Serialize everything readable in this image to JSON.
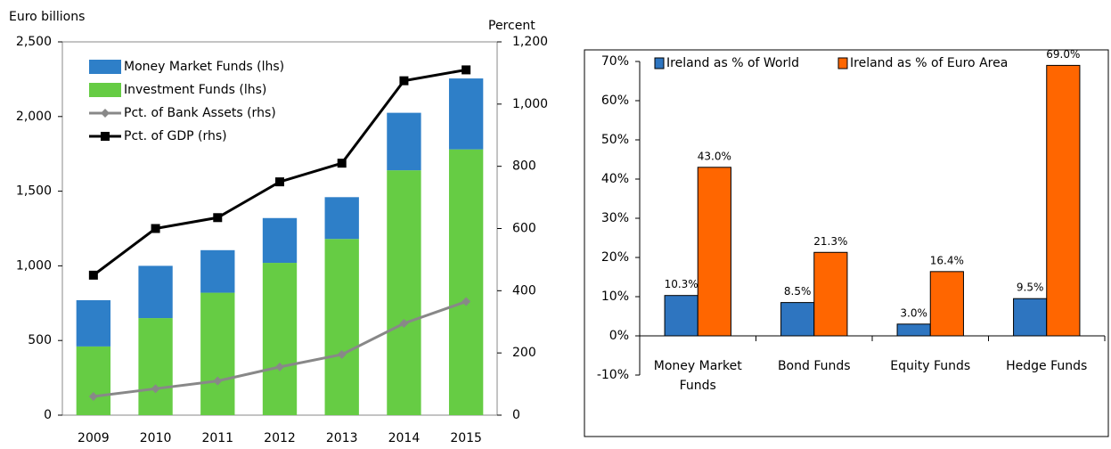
{
  "chart_data": [
    {
      "type": "bar",
      "stacked": true,
      "ylabel": "Euro billions",
      "y2label": "Percent",
      "categories": [
        "2009",
        "2010",
        "2011",
        "2012",
        "2013",
        "2014",
        "2015"
      ],
      "ylim": [
        0,
        2500
      ],
      "yticks": [
        0,
        500,
        {
          "value": 1000,
          "label": "1,000"
        },
        {
          "value": 1500,
          "label": "1,500"
        },
        {
          "value": 2000,
          "label": "2,000"
        },
        {
          "value": 2500,
          "label": "2,500"
        }
      ],
      "y2lim": [
        0,
        1200
      ],
      "y2ticks": [
        0,
        200,
        400,
        600,
        800,
        {
          "value": 1000,
          "label": "1,000"
        },
        {
          "value": 1200,
          "label": "1,200"
        }
      ],
      "series": [
        {
          "name": "Money Market Funds (lhs)",
          "color": "#2e7fc8",
          "values": [
            310,
            350,
            285,
            300,
            280,
            385,
            475
          ]
        },
        {
          "name": "Investment Funds (lhs)",
          "color": "#66cc44",
          "values": [
            460,
            650,
            820,
            1020,
            1180,
            1640,
            1780
          ]
        },
        {
          "name": "Pct. of Bank Assets (rhs)",
          "color": "#888888",
          "type": "line",
          "marker": "diamond",
          "axis": "y2",
          "values": [
            60,
            85,
            110,
            155,
            195,
            295,
            365
          ]
        },
        {
          "name": "Pct. of GDP (rhs)",
          "color": "#000000",
          "type": "line",
          "marker": "square",
          "axis": "y2",
          "values": [
            450,
            600,
            635,
            750,
            810,
            1075,
            1110
          ]
        }
      ]
    },
    {
      "type": "bar",
      "stacked": false,
      "categories": [
        "Money Market Funds",
        "Bond Funds",
        "Equity Funds",
        "Hedge Funds"
      ],
      "ylim": [
        -10,
        70
      ],
      "yticks": [
        {
          "value": -10,
          "label": "-10%"
        },
        {
          "value": 0,
          "label": "0%"
        },
        {
          "value": 10,
          "label": "10%"
        },
        {
          "value": 20,
          "label": "20%"
        },
        {
          "value": 30,
          "label": "30%"
        },
        {
          "value": 40,
          "label": "40%"
        },
        {
          "value": 50,
          "label": "50%"
        },
        {
          "value": 60,
          "label": "60%"
        },
        {
          "value": 70,
          "label": "70%"
        }
      ],
      "series": [
        {
          "name": "Ireland as % of World",
          "color": "#2e75c0",
          "values": [
            10.3,
            8.5,
            3.0,
            9.5
          ],
          "value_labels": [
            "10.3%",
            "8.5%",
            "3.0%",
            "9.5%"
          ]
        },
        {
          "name": "Ireland as % of Euro Area",
          "color": "#ff6600",
          "values": [
            43.0,
            21.3,
            16.4,
            69.0
          ],
          "value_labels": [
            "43.0%",
            "21.3%",
            "16.4%",
            "69.0%"
          ]
        }
      ]
    }
  ]
}
